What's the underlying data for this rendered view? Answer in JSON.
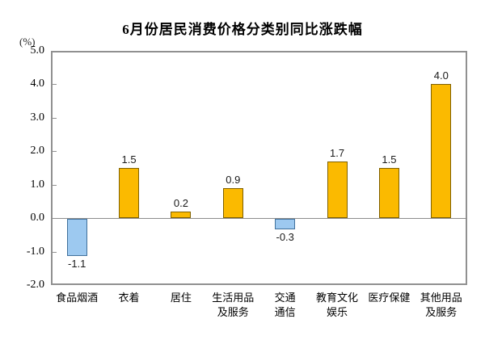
{
  "title": "6月份居民消费价格分类别同比涨跌幅",
  "chart_data": {
    "type": "bar",
    "title": "6月份居民消费价格分类别同比涨跌幅",
    "unit_label": "(%)",
    "categories": [
      "食品烟酒",
      "衣着",
      "居住",
      "生活用品\n及服务",
      "交通\n通信",
      "教育文化\n娱乐",
      "医疗保健",
      "其他用品\n及服务"
    ],
    "values": [
      -1.1,
      1.5,
      0.2,
      0.9,
      -0.3,
      1.7,
      1.5,
      4.0
    ],
    "value_labels": [
      "-1.1",
      "1.5",
      "0.2",
      "0.9",
      "-0.3",
      "1.7",
      "1.5",
      "4.0"
    ],
    "xlabel": "",
    "ylabel": "(%)",
    "ylim": [
      -2.0,
      5.0
    ],
    "y_ticks": [
      "5.0",
      "4.0",
      "3.0",
      "2.0",
      "1.0",
      "0.0",
      "-1.0",
      "-2.0"
    ],
    "grid": "zero-line-only",
    "legend": "none",
    "colors": {
      "positive_fill": "#FBBA00",
      "positive_border": "#7F6000",
      "negative_fill": "#9DC9F0",
      "negative_border": "#41719C",
      "axis_border": "#909090",
      "text": "#000000"
    }
  }
}
